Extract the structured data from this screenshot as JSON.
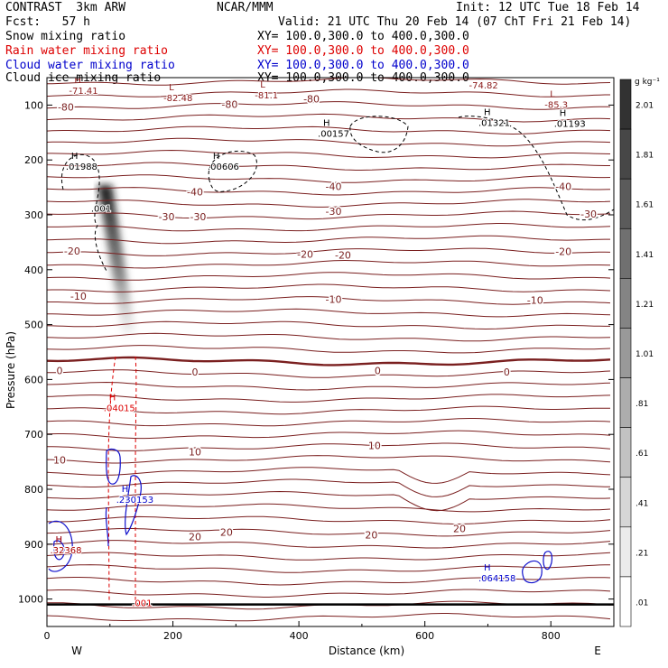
{
  "header": {
    "model": "CONTRAST  3km ARW",
    "org": "NCAR/MMM",
    "init": "Init: 12 UTC Tue 18 Feb 14",
    "fcst": "Fcst:   57 h",
    "valid": "Valid: 21 UTC Thu 20 Feb 14 (07 ChT Fri 21 Feb 14)",
    "rows": [
      {
        "field": "Snow mixing ratio",
        "xy": "XY= 100.0,300.0 to 400.0,300.0",
        "color": "#000000"
      },
      {
        "field": "Rain water mixing ratio",
        "xy": "XY= 100.0,300.0 to 400.0,300.0",
        "color": "#dd0000"
      },
      {
        "field": "Cloud water mixing ratio",
        "xy": "XY= 100.0,300.0 to 400.0,300.0",
        "color": "#0000cc"
      },
      {
        "field": "Cloud ice mixing ratio",
        "xy": "XY= 100.0,300.0 to 400.0,300.0",
        "color": "#000000"
      }
    ]
  },
  "chart_data": {
    "type": "contour",
    "xlabel": "Distance (km)",
    "ylabel": "Pressure (hPa)",
    "xlim": [
      0,
      900
    ],
    "ylim": [
      1050,
      50
    ],
    "x_ticks": [
      0,
      200,
      400,
      600,
      800
    ],
    "y_ticks": [
      100,
      200,
      300,
      400,
      500,
      600,
      700,
      800,
      900,
      1000
    ],
    "x_end_labels": {
      "left": "W",
      "right": "E"
    },
    "colorbar": {
      "unit": "g kg⁻¹",
      "ticks": [
        ".01",
        ".21",
        ".41",
        ".61",
        ".81",
        "1.01",
        "1.21",
        "1.41",
        "1.61",
        "1.81",
        "2.01"
      ]
    },
    "temperature_contour_labels": [
      {
        "text": "-80",
        "x": 30,
        "p": 110
      },
      {
        "text": "-80",
        "x": 290,
        "p": 105
      },
      {
        "text": "-80",
        "x": 420,
        "p": 95
      },
      {
        "text": "-40",
        "x": 235,
        "p": 265
      },
      {
        "text": "-40",
        "x": 455,
        "p": 255
      },
      {
        "text": "-40",
        "x": 820,
        "p": 255
      },
      {
        "text": "-30",
        "x": 190,
        "p": 310
      },
      {
        "text": "-30",
        "x": 240,
        "p": 310
      },
      {
        "text": "-30",
        "x": 455,
        "p": 300
      },
      {
        "text": "-30",
        "x": 860,
        "p": 305
      },
      {
        "text": "-20",
        "x": 40,
        "p": 372
      },
      {
        "text": "-20",
        "x": 410,
        "p": 378
      },
      {
        "text": "-20",
        "x": 470,
        "p": 380
      },
      {
        "text": "-20",
        "x": 820,
        "p": 373
      },
      {
        "text": "-10",
        "x": 50,
        "p": 455
      },
      {
        "text": "-10",
        "x": 455,
        "p": 460
      },
      {
        "text": "-10",
        "x": 775,
        "p": 462
      },
      {
        "text": "0",
        "x": 20,
        "p": 590
      },
      {
        "text": "0",
        "x": 235,
        "p": 593
      },
      {
        "text": "0",
        "x": 525,
        "p": 590
      },
      {
        "text": "0",
        "x": 730,
        "p": 593
      },
      {
        "text": "10",
        "x": 20,
        "p": 753
      },
      {
        "text": "10",
        "x": 235,
        "p": 738
      },
      {
        "text": "10",
        "x": 520,
        "p": 727
      },
      {
        "text": "20",
        "x": 235,
        "p": 893
      },
      {
        "text": "20",
        "x": 285,
        "p": 885
      },
      {
        "text": "20",
        "x": 515,
        "p": 890
      },
      {
        "text": "20",
        "x": 655,
        "p": 878
      }
    ],
    "max_min_labels": [
      {
        "type": "H",
        "value": "-71.41",
        "x": 35,
        "p": 80,
        "color": "#8b1a1a"
      },
      {
        "type": "L",
        "value": "-82.48",
        "x": 185,
        "p": 93,
        "color": "#8b1a1a"
      },
      {
        "type": "L",
        "value": "-81.1",
        "x": 330,
        "p": 88,
        "color": "#8b1a1a"
      },
      {
        "type": "H",
        "value": "-74.82",
        "x": 670,
        "p": 70,
        "color": "#8b1a1a"
      },
      {
        "type": "L",
        "value": "-85.3",
        "x": 790,
        "p": 105,
        "color": "#8b1a1a"
      },
      {
        "type": "H",
        "value": ".01988",
        "x": 30,
        "p": 218,
        "color": "#000000"
      },
      {
        "type": "H",
        "value": ".00606",
        "x": 255,
        "p": 218,
        "color": "#000000"
      },
      {
        "type": "H",
        "value": ".00157",
        "x": 430,
        "p": 158,
        "color": "#000000"
      },
      {
        "type": "H",
        "value": ".01321",
        "x": 685,
        "p": 138,
        "color": "#000000"
      },
      {
        "type": "H",
        "value": ".01193",
        "x": 805,
        "p": 140,
        "color": "#000000"
      },
      {
        "type": "",
        "value": ".001",
        "x": 70,
        "p": 294,
        "color": "#000000"
      },
      {
        "type": "H",
        "value": ".04015",
        "x": 90,
        "p": 658,
        "color": "#dd0000"
      },
      {
        "type": "",
        "value": ".001",
        "x": 135,
        "p": 1013,
        "color": "#dd0000"
      },
      {
        "type": "H",
        "value": ".230153",
        "x": 110,
        "p": 825,
        "color": "#0000cc"
      },
      {
        "type": "H",
        "value": ".33363",
        "x": 5,
        "p": 917,
        "color": "#0000cc"
      },
      {
        "type": "H",
        "value": ".32368",
        "x": 5,
        "p": 917,
        "color": "#aa0000"
      },
      {
        "type": "H",
        "value": ".064158",
        "x": 685,
        "p": 968,
        "color": "#0000cc"
      }
    ]
  }
}
